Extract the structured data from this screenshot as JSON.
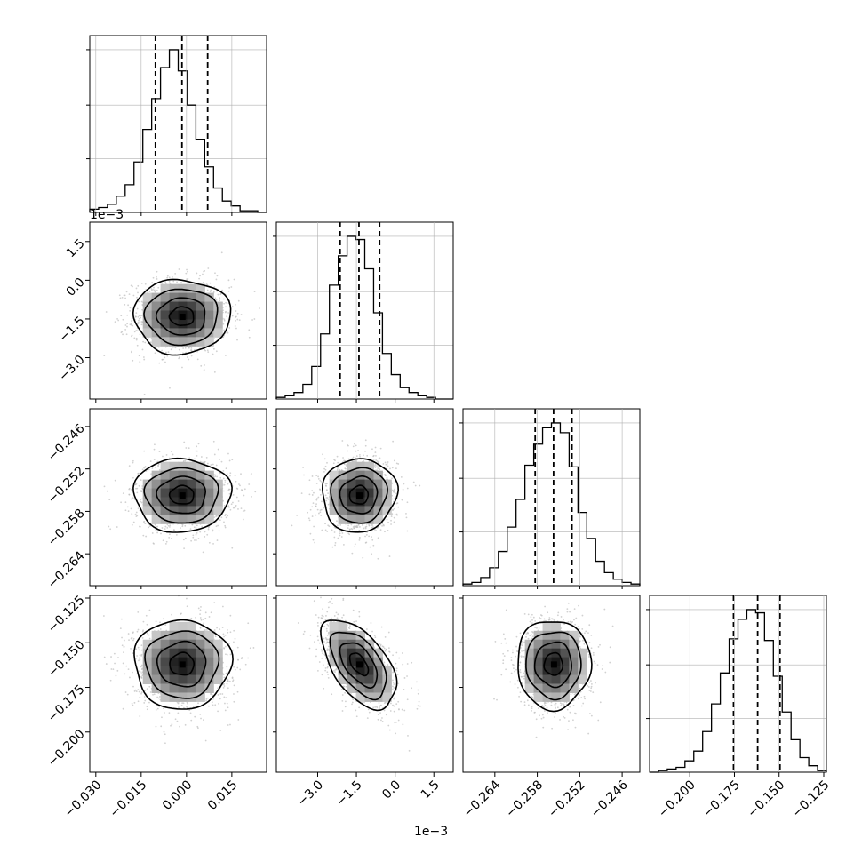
{
  "chart_data": {
    "type": "corner",
    "description_note": "",
    "offset_label": "1e−3",
    "colors": {
      "axes": "#000000",
      "grid": "#b0b0b0",
      "hist": "#000000",
      "scatter": "#bdbdbd",
      "density_dark": "#000000"
    },
    "grid": true,
    "params": [
      {
        "range": [
          -0.032,
          0.0265
        ],
        "ticks": [
          -0.03,
          -0.015,
          0.0,
          0.015
        ],
        "tick_labels": [
          "−0.030",
          "−0.015",
          "0.000",
          "0.015"
        ],
        "mean": -0.0015,
        "sd": 0.008,
        "quantiles": [
          -0.0103,
          -0.0015,
          0.007
        ]
      },
      {
        "range": [
          -4.6,
          2.25
        ],
        "ticks": [
          -3.0,
          -1.5,
          0.0,
          1.5
        ],
        "tick_labels": [
          "−3.0",
          "−1.5",
          "0.0",
          "1.5"
        ],
        "mean": -1.4,
        "sd": 0.72,
        "quantiles": [
          -2.13,
          -1.4,
          -0.6
        ],
        "scale_note": "1e−3"
      },
      {
        "range": [
          -0.2685,
          -0.2435
        ],
        "ticks": [
          -0.264,
          -0.258,
          -0.252,
          -0.246
        ],
        "tick_labels": [
          "−0.264",
          "−0.258",
          "−0.252",
          "−0.246"
        ],
        "mean": -0.2557,
        "sd": 0.0026,
        "quantiles": [
          -0.2583,
          -0.2557,
          -0.2531
        ]
      },
      {
        "range": [
          -0.2225,
          -0.1235
        ],
        "ticks": [
          -0.2,
          -0.175,
          -0.15,
          -0.125
        ],
        "tick_labels": [
          "−0.200",
          "−0.175",
          "−0.150",
          "−0.125"
        ],
        "mean": -0.162,
        "sd": 0.0125,
        "quantiles": [
          -0.1755,
          -0.162,
          -0.1495
        ]
      }
    ],
    "histograms": [
      {
        "param": 0,
        "relative_heights": [
          0.02,
          0.03,
          0.05,
          0.1,
          0.17,
          0.31,
          0.51,
          0.7,
          0.89,
          1.0,
          0.87,
          0.66,
          0.45,
          0.28,
          0.15,
          0.07,
          0.04,
          0.01,
          0.01,
          0.0
        ]
      },
      {
        "param": 1,
        "relative_heights": [
          0.01,
          0.02,
          0.04,
          0.09,
          0.2,
          0.4,
          0.7,
          0.88,
          1.0,
          0.98,
          0.8,
          0.53,
          0.28,
          0.15,
          0.07,
          0.04,
          0.02,
          0.01,
          0.0,
          0.0
        ]
      },
      {
        "param": 2,
        "relative_heights": [
          0.01,
          0.02,
          0.05,
          0.11,
          0.21,
          0.36,
          0.53,
          0.74,
          0.87,
          0.97,
          1.0,
          0.94,
          0.73,
          0.45,
          0.29,
          0.15,
          0.08,
          0.04,
          0.02,
          0.01
        ]
      },
      {
        "param": 3,
        "relative_heights": [
          0.0,
          0.01,
          0.02,
          0.03,
          0.07,
          0.13,
          0.25,
          0.42,
          0.61,
          0.82,
          0.94,
          1.0,
          0.98,
          0.81,
          0.59,
          0.37,
          0.2,
          0.09,
          0.04,
          0.01
        ]
      }
    ],
    "correlations": [
      {
        "pair": [
          1,
          0
        ],
        "rho": 0.0
      },
      {
        "pair": [
          2,
          0
        ],
        "rho": 0.0
      },
      {
        "pair": [
          2,
          1
        ],
        "rho": 0.05
      },
      {
        "pair": [
          3,
          0
        ],
        "rho": 0.0
      },
      {
        "pair": [
          3,
          1
        ],
        "rho": -0.55
      },
      {
        "pair": [
          3,
          2
        ],
        "rho": 0.0
      }
    ],
    "contour_levels_sigma": [
      0.5,
      1.0,
      1.5,
      2.0
    ]
  }
}
